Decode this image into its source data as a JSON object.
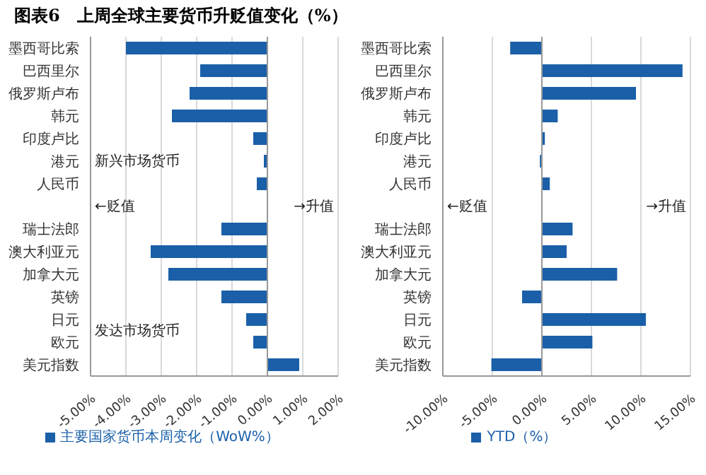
{
  "chart_data": [
    {
      "type": "bar",
      "orientation": "horizontal",
      "title": "图表6　上周全球主要货币升贬值变化（%）",
      "categories": [
        "墨西哥比索",
        "巴西里尔",
        "俄罗斯卢布",
        "韩元",
        "印度卢比",
        "港元",
        "人民币",
        null,
        "瑞士法郎",
        "澳大利亚元",
        "加拿大元",
        "英镑",
        "日元",
        "欧元",
        "美元指数"
      ],
      "series": [
        {
          "name": "主要国家货币本周变化（WoW%）",
          "color": "#1a5fa8",
          "values": [
            -4.0,
            -1.9,
            -2.2,
            -2.7,
            -0.4,
            -0.1,
            -0.3,
            null,
            -1.3,
            -3.3,
            -2.8,
            -1.3,
            -0.6,
            -0.4,
            0.9
          ]
        }
      ],
      "xlim": [
        -5,
        2
      ],
      "xticks": [
        {
          "value": -5,
          "label": "-5.00%"
        },
        {
          "value": -4,
          "label": "-4.00%"
        },
        {
          "value": -3,
          "label": "-3.00%"
        },
        {
          "value": -2,
          "label": "-2.00%"
        },
        {
          "value": -1,
          "label": "-1.00%"
        },
        {
          "value": 0,
          "label": "0.00%"
        },
        {
          "value": 1,
          "label": "1.00%"
        },
        {
          "value": 2,
          "label": "2.00%"
        }
      ],
      "grid": "x",
      "legend": "bottom",
      "annotations": [
        "←贬值",
        "→升值",
        "新兴市场货币",
        "发达市场货币"
      ]
    },
    {
      "type": "bar",
      "orientation": "horizontal",
      "categories": [
        "墨西哥比索",
        "巴西里尔",
        "俄罗斯卢布",
        "韩元",
        "印度卢比",
        "港元",
        "人民币",
        null,
        "瑞士法郎",
        "澳大利亚元",
        "加拿大元",
        "英镑",
        "日元",
        "欧元",
        "美元指数"
      ],
      "series": [
        {
          "name": "YTD（%）",
          "color": "#1a5fa8",
          "values": [
            -3.2,
            14.2,
            9.5,
            1.6,
            0.3,
            -0.2,
            0.8,
            null,
            3.1,
            2.5,
            7.6,
            -2,
            10.5,
            5.1,
            -5.1
          ]
        }
      ],
      "xlim": [
        -10,
        15
      ],
      "xticks": [
        {
          "value": -10,
          "label": "-10.00%"
        },
        {
          "value": -5,
          "label": "-5.00%"
        },
        {
          "value": 0,
          "label": "0.00%"
        },
        {
          "value": 5,
          "label": "5.00%"
        },
        {
          "value": 10,
          "label": "10.00%"
        },
        {
          "value": 15,
          "label": "15.00%"
        }
      ],
      "grid": "x",
      "legend": "bottom",
      "annotations": [
        "←贬值",
        "→升值"
      ]
    }
  ]
}
